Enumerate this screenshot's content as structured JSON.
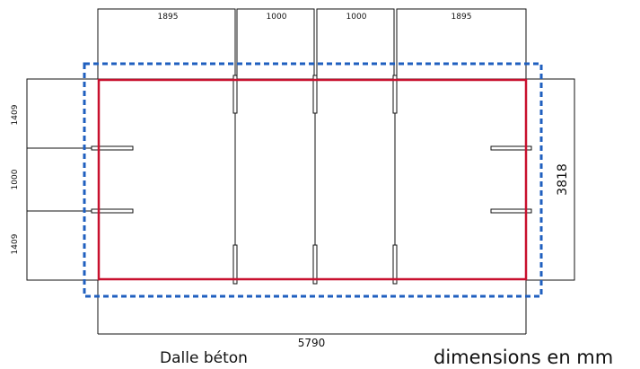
{
  "dimensions": {
    "top": [
      "1895",
      "1000",
      "1000",
      "1895"
    ],
    "left": [
      "1409",
      "1000",
      "1409"
    ],
    "right": "3818",
    "bottom": "5790"
  },
  "captions": {
    "slab": "Dalle béton",
    "units": "dimensions en mm"
  },
  "colors": {
    "outline_dashed": "#1f5fbf",
    "slab": "#c8102e",
    "lines": "#111111"
  }
}
